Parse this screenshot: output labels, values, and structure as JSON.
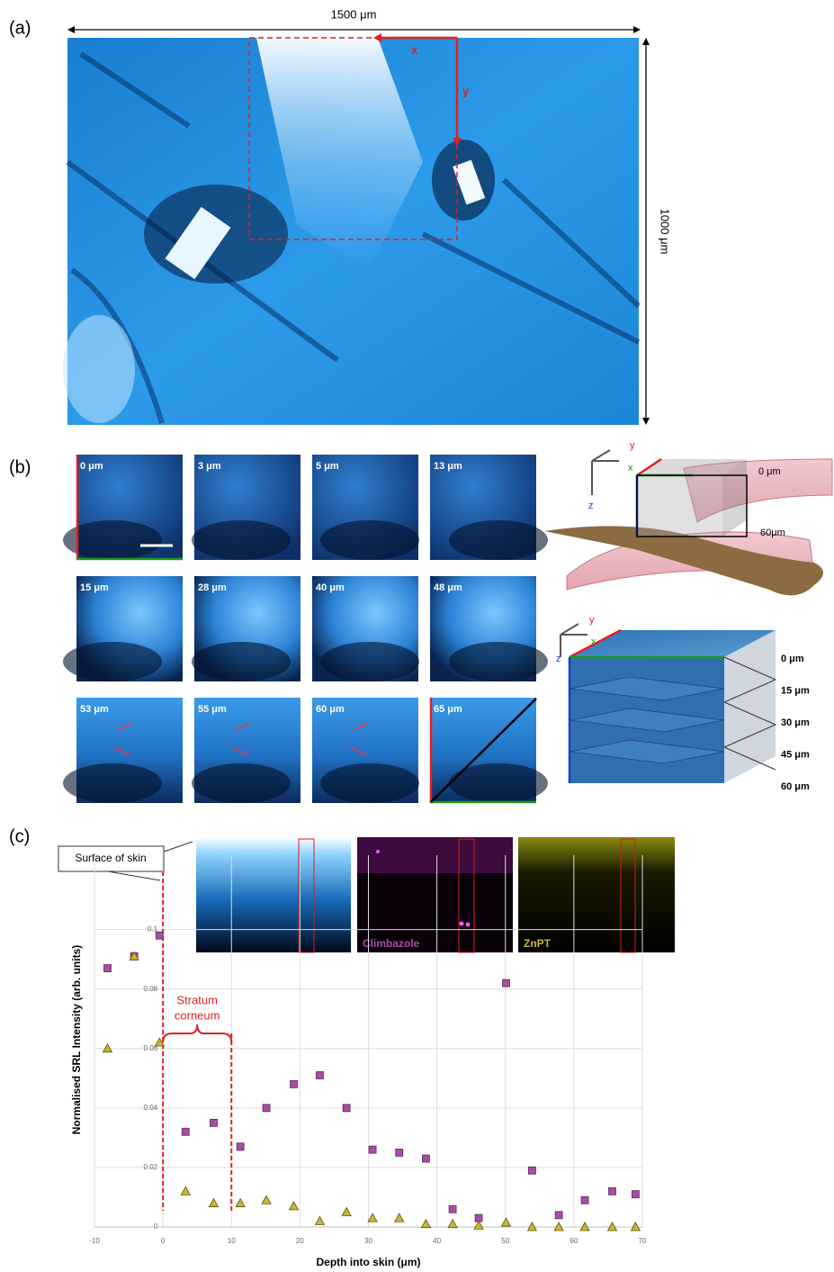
{
  "panel_a": {
    "label": "(a)",
    "width": "1500 μm",
    "height": "1000 μm",
    "axis_x": "x",
    "axis_y": "y"
  },
  "panel_b": {
    "label": "(b)",
    "tiles": [
      "0 μm",
      "3 μm",
      "5 μm",
      "13 μm",
      "15 μm",
      "28 μm",
      "40 μm",
      "48 μm",
      "53 μm",
      "55 μm",
      "60 μm",
      "65 μm"
    ],
    "schematic": {
      "axes": [
        "y",
        "x",
        "z"
      ],
      "top_depth": "0 μm",
      "bottom_depth": "60μm"
    },
    "cube": {
      "axes": [
        "y",
        "x",
        "z"
      ],
      "depths": [
        "0 μm",
        "15 μm",
        "30 μm",
        "45 μm",
        "60 μm"
      ]
    }
  },
  "panel_c": {
    "label": "(c)",
    "surface": "Surface of skin",
    "stratum": [
      "Stratum",
      "corneum"
    ]
  },
  "chart_data": {
    "type": "scatter",
    "x_label": "Depth into skin (μm)",
    "y_label": "Normalised SRL Intensity (arb. units)",
    "x": [
      -8.1,
      -4.2,
      -0.5,
      3.3,
      7.4,
      11.3,
      15.1,
      19.1,
      22.9,
      26.8,
      30.6,
      34.5,
      38.4,
      42.3,
      46.1,
      50.1,
      53.9,
      57.8,
      61.6,
      65.6,
      69
    ],
    "series": [
      {
        "name": "Climbazole",
        "color": "#a94ca9",
        "marker": "square",
        "values": [
          0.087,
          0.091,
          0.098,
          0.032,
          0.035,
          0.027,
          0.04,
          0.048,
          0.051,
          0.04,
          0.026,
          0.025,
          0.023,
          0.006,
          0.003,
          0.082,
          0.019,
          0.004,
          0.009,
          0.012,
          0.011
        ]
      },
      {
        "name": "ZnPT",
        "color": "#c9b634",
        "marker": "triangle",
        "values": [
          0.06,
          0.091,
          0.062,
          0.012,
          0.008,
          0.008,
          0.009,
          0.007,
          0.002,
          0.005,
          0.003,
          0.003,
          0.001,
          0.001,
          0.0005,
          0.0015,
          0,
          0,
          0,
          0,
          0
        ]
      }
    ],
    "xlim": [
      -10,
      70
    ],
    "xticks": [
      -10,
      0,
      10,
      20,
      30,
      40,
      50,
      60,
      70
    ],
    "ylim": [
      0,
      0.125
    ],
    "yticks": [
      0,
      0.02,
      0.04,
      0.06,
      0.08,
      0.1
    ],
    "grid": true,
    "annotations": {
      "surface_x": 0,
      "stratum_x": [
        0,
        10
      ]
    }
  }
}
